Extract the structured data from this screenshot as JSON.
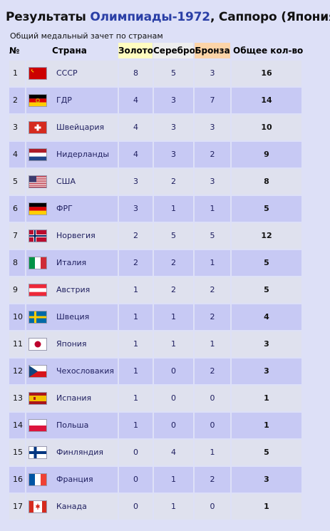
{
  "page": {
    "title_prefix": "Результаты ",
    "title_accent": "Олимпиады-1972",
    "title_suffix": ", Саппоро (Япония)",
    "subtitle": "Общий медальный зачет по странам"
  },
  "table": {
    "headers": {
      "rank": "№",
      "country": "Страна",
      "gold": "Золото",
      "silver": "Серебро",
      "bronze": "Бронза",
      "total": "Общее кол-во"
    },
    "colors": {
      "gold": "#fffcc0",
      "silver": "#eeeeee",
      "bronze": "#fcd4a8",
      "row_odd": "#dfe1ee",
      "row_even": "#c7c9f4"
    },
    "rows": [
      {
        "rank": "1",
        "country": "СССР",
        "gold": "8",
        "silver": "5",
        "bronze": "3",
        "total": "16",
        "flag": "ussr-flag-icon"
      },
      {
        "rank": "2",
        "country": "ГДР",
        "gold": "4",
        "silver": "3",
        "bronze": "7",
        "total": "14",
        "flag": "gdr-flag-icon"
      },
      {
        "rank": "3",
        "country": "Швейцария",
        "gold": "4",
        "silver": "3",
        "bronze": "3",
        "total": "10",
        "flag": "switzerland-flag-icon"
      },
      {
        "rank": "4",
        "country": "Нидерланды",
        "gold": "4",
        "silver": "3",
        "bronze": "2",
        "total": "9",
        "flag": "netherlands-flag-icon"
      },
      {
        "rank": "5",
        "country": "США",
        "gold": "3",
        "silver": "2",
        "bronze": "3",
        "total": "8",
        "flag": "usa-flag-icon"
      },
      {
        "rank": "6",
        "country": "ФРГ",
        "gold": "3",
        "silver": "1",
        "bronze": "1",
        "total": "5",
        "flag": "frg-flag-icon"
      },
      {
        "rank": "7",
        "country": "Норвегия",
        "gold": "2",
        "silver": "5",
        "bronze": "5",
        "total": "12",
        "flag": "norway-flag-icon"
      },
      {
        "rank": "8",
        "country": "Италия",
        "gold": "2",
        "silver": "2",
        "bronze": "1",
        "total": "5",
        "flag": "italy-flag-icon"
      },
      {
        "rank": "9",
        "country": "Австрия",
        "gold": "1",
        "silver": "2",
        "bronze": "2",
        "total": "5",
        "flag": "austria-flag-icon"
      },
      {
        "rank": "10",
        "country": "Швеция",
        "gold": "1",
        "silver": "1",
        "bronze": "2",
        "total": "4",
        "flag": "sweden-flag-icon"
      },
      {
        "rank": "11",
        "country": "Япония",
        "gold": "1",
        "silver": "1",
        "bronze": "1",
        "total": "3",
        "flag": "japan-flag-icon"
      },
      {
        "rank": "12",
        "country": "Чехословакия",
        "gold": "1",
        "silver": "0",
        "bronze": "2",
        "total": "3",
        "flag": "czechoslovakia-flag-icon"
      },
      {
        "rank": "13",
        "country": "Испания",
        "gold": "1",
        "silver": "0",
        "bronze": "0",
        "total": "1",
        "flag": "spain-flag-icon"
      },
      {
        "rank": "14",
        "country": "Польша",
        "gold": "1",
        "silver": "0",
        "bronze": "0",
        "total": "1",
        "flag": "poland-flag-icon"
      },
      {
        "rank": "15",
        "country": "Финляндия",
        "gold": "0",
        "silver": "4",
        "bronze": "1",
        "total": "5",
        "flag": "finland-flag-icon"
      },
      {
        "rank": "16",
        "country": "Франция",
        "gold": "0",
        "silver": "1",
        "bronze": "2",
        "total": "3",
        "flag": "france-flag-icon"
      },
      {
        "rank": "17",
        "country": "Канада",
        "gold": "0",
        "silver": "1",
        "bronze": "0",
        "total": "1",
        "flag": "canada-flag-icon"
      }
    ]
  }
}
